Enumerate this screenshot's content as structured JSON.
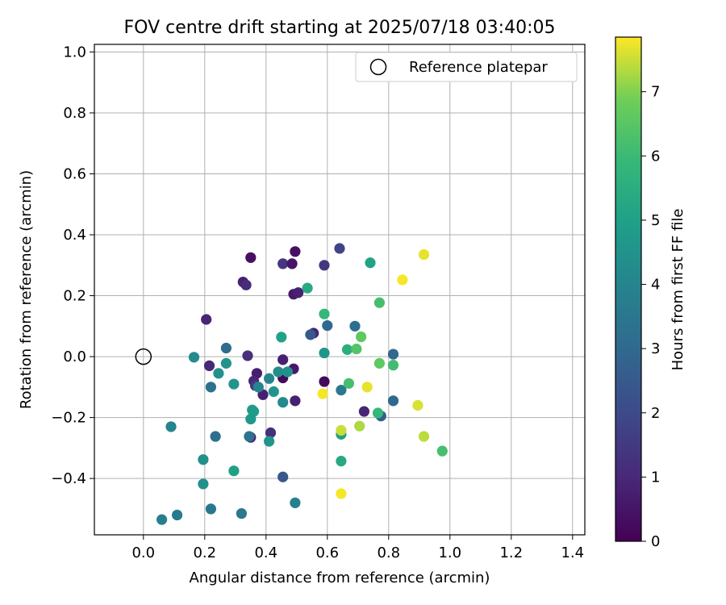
{
  "chart_data": {
    "type": "scatter",
    "title": "FOV centre drift starting at 2025/07/18 03:40:05",
    "xlabel": "Angular distance from reference (arcmin)",
    "ylabel": "Rotation from reference (arcmin)",
    "xlim": [
      -0.16,
      1.44
    ],
    "ylim": [
      -0.585,
      1.025
    ],
    "xticks": [
      0.0,
      0.2,
      0.4,
      0.6,
      0.8,
      1.0,
      1.2,
      1.4
    ],
    "xtick_labels": [
      "0.0",
      "0.2",
      "0.4",
      "0.6",
      "0.8",
      "1.0",
      "1.2",
      "1.4"
    ],
    "yticks": [
      -0.4,
      -0.2,
      0.0,
      0.2,
      0.4,
      0.6,
      0.8,
      1.0
    ],
    "ytick_labels": [
      "−0.4",
      "−0.2",
      "0.0",
      "0.2",
      "0.4",
      "0.6",
      "0.8",
      "1.0"
    ],
    "grid": true,
    "colormap": "viridis",
    "colorbar": {
      "label": "Hours from first FF file",
      "range": [
        0,
        7.85
      ],
      "ticks": [
        0,
        1,
        2,
        3,
        4,
        5,
        6,
        7
      ],
      "tick_labels": [
        "0",
        "1",
        "2",
        "3",
        "4",
        "5",
        "6",
        "7"
      ]
    },
    "legend": {
      "placement": "top-right",
      "entries": [
        "Reference platepar"
      ]
    },
    "reference_point": {
      "label": "Reference platepar",
      "x": 0.0,
      "y": 0.0
    },
    "points": [
      {
        "x": 0.35,
        "y": 0.325,
        "c": 0.4
      },
      {
        "x": 0.325,
        "y": 0.245,
        "c": 0.8
      },
      {
        "x": 0.335,
        "y": 0.235,
        "c": 1.1
      },
      {
        "x": 0.205,
        "y": 0.122,
        "c": 0.9
      },
      {
        "x": 0.215,
        "y": -0.03,
        "c": 1.0
      },
      {
        "x": 0.34,
        "y": 0.003,
        "c": 1.2
      },
      {
        "x": 0.37,
        "y": -0.055,
        "c": 0.7
      },
      {
        "x": 0.36,
        "y": -0.08,
        "c": 0.9
      },
      {
        "x": 0.365,
        "y": -0.095,
        "c": 1.4
      },
      {
        "x": 0.39,
        "y": -0.125,
        "c": 0.8
      },
      {
        "x": 0.35,
        "y": -0.265,
        "c": 0.9
      },
      {
        "x": 0.415,
        "y": -0.25,
        "c": 1.2
      },
      {
        "x": 0.455,
        "y": 0.305,
        "c": 1.4
      },
      {
        "x": 0.485,
        "y": 0.305,
        "c": 0.5
      },
      {
        "x": 0.495,
        "y": 0.345,
        "c": 0.4
      },
      {
        "x": 0.49,
        "y": 0.205,
        "c": 0.6
      },
      {
        "x": 0.505,
        "y": 0.21,
        "c": 0.8
      },
      {
        "x": 0.555,
        "y": 0.077,
        "c": 0.9
      },
      {
        "x": 0.455,
        "y": -0.01,
        "c": 0.8
      },
      {
        "x": 0.49,
        "y": -0.04,
        "c": 0.6
      },
      {
        "x": 0.455,
        "y": -0.07,
        "c": 0.2
      },
      {
        "x": 0.495,
        "y": -0.145,
        "c": 0.8
      },
      {
        "x": 0.59,
        "y": 0.3,
        "c": 1.4
      },
      {
        "x": 0.64,
        "y": 0.355,
        "c": 1.8
      },
      {
        "x": 0.59,
        "y": -0.082,
        "c": 0.2
      },
      {
        "x": 0.72,
        "y": -0.18,
        "c": 0.9
      },
      {
        "x": 0.455,
        "y": -0.395,
        "c": 2.4
      },
      {
        "x": 0.545,
        "y": 0.072,
        "c": 2.5
      },
      {
        "x": 0.6,
        "y": 0.102,
        "c": 3.0
      },
      {
        "x": 0.69,
        "y": 0.1,
        "c": 3.2
      },
      {
        "x": 0.815,
        "y": 0.008,
        "c": 2.9
      },
      {
        "x": 0.775,
        "y": -0.195,
        "c": 2.6
      },
      {
        "x": 0.815,
        "y": -0.145,
        "c": 3.0
      },
      {
        "x": 0.645,
        "y": -0.11,
        "c": 3.6
      },
      {
        "x": 0.27,
        "y": 0.028,
        "c": 3.1
      },
      {
        "x": 0.22,
        "y": -0.1,
        "c": 3.3
      },
      {
        "x": 0.235,
        "y": -0.262,
        "c": 3.2
      },
      {
        "x": 0.345,
        "y": -0.262,
        "c": 3.4
      },
      {
        "x": 0.22,
        "y": -0.5,
        "c": 3.5
      },
      {
        "x": 0.32,
        "y": -0.515,
        "c": 3.5
      },
      {
        "x": 0.11,
        "y": -0.52,
        "c": 3.6
      },
      {
        "x": 0.06,
        "y": -0.535,
        "c": 3.8
      },
      {
        "x": 0.495,
        "y": -0.48,
        "c": 3.9
      },
      {
        "x": 0.09,
        "y": -0.23,
        "c": 4.0
      },
      {
        "x": 0.165,
        "y": -0.002,
        "c": 4.2
      },
      {
        "x": 0.245,
        "y": -0.055,
        "c": 4.4
      },
      {
        "x": 0.27,
        "y": -0.022,
        "c": 4.6
      },
      {
        "x": 0.295,
        "y": -0.09,
        "c": 4.6
      },
      {
        "x": 0.375,
        "y": -0.1,
        "c": 4.0
      },
      {
        "x": 0.41,
        "y": -0.072,
        "c": 4.1
      },
      {
        "x": 0.425,
        "y": -0.115,
        "c": 4.6
      },
      {
        "x": 0.44,
        "y": -0.05,
        "c": 4.3
      },
      {
        "x": 0.47,
        "y": -0.05,
        "c": 4.4
      },
      {
        "x": 0.455,
        "y": -0.15,
        "c": 4.2
      },
      {
        "x": 0.36,
        "y": -0.18,
        "c": 5.0
      },
      {
        "x": 0.355,
        "y": -0.175,
        "c": 4.8
      },
      {
        "x": 0.35,
        "y": -0.205,
        "c": 4.7
      },
      {
        "x": 0.41,
        "y": -0.278,
        "c": 4.6
      },
      {
        "x": 0.195,
        "y": -0.338,
        "c": 4.4
      },
      {
        "x": 0.195,
        "y": -0.418,
        "c": 4.4
      },
      {
        "x": 0.295,
        "y": -0.375,
        "c": 5.0
      },
      {
        "x": 0.45,
        "y": 0.064,
        "c": 5.1
      },
      {
        "x": 0.535,
        "y": 0.225,
        "c": 5.3
      },
      {
        "x": 0.59,
        "y": 0.012,
        "c": 4.6
      },
      {
        "x": 0.74,
        "y": 0.308,
        "c": 5.1
      },
      {
        "x": 0.59,
        "y": 0.14,
        "c": 5.9
      },
      {
        "x": 0.665,
        "y": 0.023,
        "c": 5.5
      },
      {
        "x": 0.645,
        "y": -0.255,
        "c": 5.0
      },
      {
        "x": 0.645,
        "y": -0.343,
        "c": 5.3
      },
      {
        "x": 0.67,
        "y": -0.088,
        "c": 6.2
      },
      {
        "x": 0.695,
        "y": 0.025,
        "c": 6.4
      },
      {
        "x": 0.71,
        "y": 0.065,
        "c": 6.6
      },
      {
        "x": 0.77,
        "y": 0.177,
        "c": 6.2
      },
      {
        "x": 0.77,
        "y": -0.022,
        "c": 6.6
      },
      {
        "x": 0.815,
        "y": -0.028,
        "c": 6.1
      },
      {
        "x": 0.765,
        "y": -0.185,
        "c": 5.9
      },
      {
        "x": 0.975,
        "y": -0.31,
        "c": 6.2
      },
      {
        "x": 0.585,
        "y": -0.122,
        "c": 7.8
      },
      {
        "x": 0.645,
        "y": -0.242,
        "c": 7.5
      },
      {
        "x": 0.645,
        "y": -0.45,
        "c": 7.8
      },
      {
        "x": 0.705,
        "y": -0.228,
        "c": 7.3
      },
      {
        "x": 0.73,
        "y": -0.1,
        "c": 7.7
      },
      {
        "x": 0.845,
        "y": 0.252,
        "c": 7.8
      },
      {
        "x": 0.895,
        "y": -0.16,
        "c": 7.6
      },
      {
        "x": 0.915,
        "y": 0.335,
        "c": 7.7
      },
      {
        "x": 0.915,
        "y": -0.262,
        "c": 7.4
      }
    ]
  }
}
